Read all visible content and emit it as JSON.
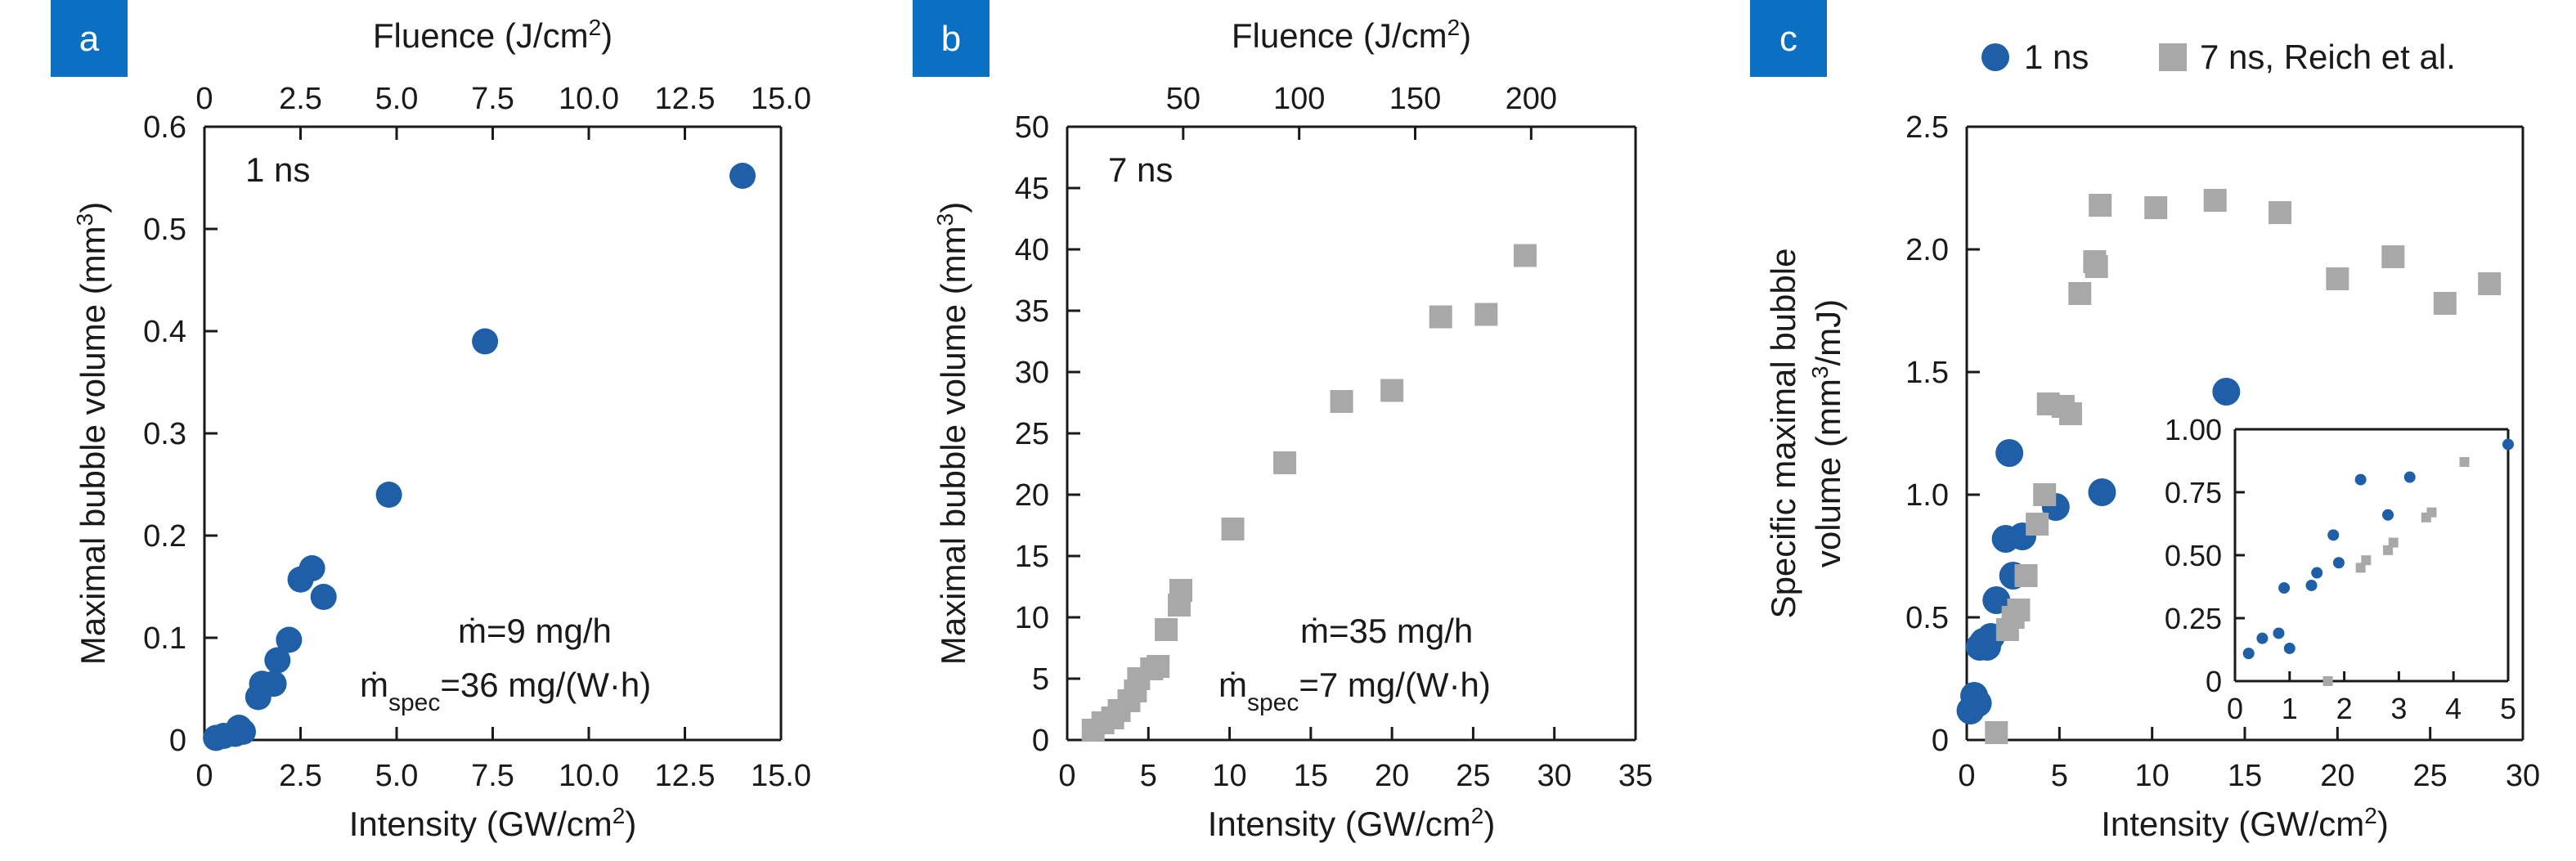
{
  "colors": {
    "blue": "#1f5fa8",
    "gray": "#a8a8a8",
    "badge": "#0b6fc2",
    "axis": "#1a1a1a"
  },
  "chart_data": [
    {
      "id": "a",
      "type": "scatter",
      "panel_label": "a",
      "xlabel": "Intensity (GW/cm²)",
      "ylabel": "Maximal bubble volume (mm³)",
      "x2label": "Fluence (J/cm²)",
      "xlim": [
        0,
        15
      ],
      "ylim": [
        0,
        0.6
      ],
      "x2lim": [
        0,
        15
      ],
      "xticks": [
        "0",
        "2.5",
        "5.0",
        "7.5",
        "10.0",
        "12.5",
        "15.0"
      ],
      "x2ticks": [
        "0",
        "2.5",
        "5.0",
        "7.5",
        "10.0",
        "12.5",
        "15.0"
      ],
      "yticks": [
        "0",
        "0.1",
        "0.2",
        "0.3",
        "0.4",
        "0.5",
        "0.6"
      ],
      "annotations": [
        "1 ns",
        "ṁ=9 mg/h",
        "ṁ",
        "spec",
        "=36 mg/(W·h)"
      ],
      "series": [
        {
          "marker": "circle",
          "color": "#1f5fa8",
          "points": [
            [
              0.3,
              0.002
            ],
            [
              0.5,
              0.004
            ],
            [
              0.8,
              0.006
            ],
            [
              0.9,
              0.012
            ],
            [
              1.0,
              0.008
            ],
            [
              1.4,
              0.042
            ],
            [
              1.5,
              0.055
            ],
            [
              1.8,
              0.055
            ],
            [
              1.9,
              0.078
            ],
            [
              2.2,
              0.098
            ],
            [
              2.5,
              0.157
            ],
            [
              2.8,
              0.168
            ],
            [
              3.1,
              0.14
            ],
            [
              4.8,
              0.24
            ],
            [
              7.3,
              0.39
            ],
            [
              14.0,
              0.552
            ]
          ]
        }
      ]
    },
    {
      "id": "b",
      "type": "scatter",
      "panel_label": "b",
      "xlabel": "Intensity (GW/cm²)",
      "ylabel": "Maximal bubble volume (mm³)",
      "x2label": "Fluence (J/cm²)",
      "xlim": [
        0,
        35
      ],
      "ylim": [
        0,
        50
      ],
      "x2lim": [
        0,
        245
      ],
      "xticks": [
        "0",
        "5",
        "10",
        "15",
        "20",
        "25",
        "30",
        "35"
      ],
      "x2ticks": [
        "50",
        "100",
        "150",
        "200"
      ],
      "yticks": [
        "0",
        "5",
        "10",
        "15",
        "20",
        "25",
        "30",
        "35",
        "40",
        "45",
        "50"
      ],
      "annotations": [
        "7 ns",
        "ṁ=35 mg/h",
        "ṁ",
        "spec",
        "=7 mg/(W·h)"
      ],
      "series": [
        {
          "marker": "square",
          "color": "#a8a8a8",
          "points": [
            [
              1.6,
              0.8
            ],
            [
              2.2,
              1.4
            ],
            [
              2.8,
              1.8
            ],
            [
              3.2,
              2.4
            ],
            [
              3.8,
              3.2
            ],
            [
              4.2,
              4.0
            ],
            [
              4.4,
              5.0
            ],
            [
              5.2,
              5.8
            ],
            [
              5.6,
              6.0
            ],
            [
              6.1,
              9.0
            ],
            [
              6.9,
              11.0
            ],
            [
              7.0,
              12.2
            ],
            [
              10.2,
              17.2
            ],
            [
              13.4,
              22.6
            ],
            [
              16.9,
              27.6
            ],
            [
              20.0,
              28.5
            ],
            [
              23.0,
              34.5
            ],
            [
              25.8,
              34.7
            ],
            [
              28.2,
              39.5
            ]
          ]
        }
      ]
    },
    {
      "id": "c",
      "type": "scatter",
      "panel_label": "c",
      "xlabel": "Intensity (GW/cm²)",
      "ylabel_lines": [
        "Specific maximal bubble",
        "volume (mm³/mJ)"
      ],
      "xlim": [
        0,
        30
      ],
      "ylim": [
        0,
        2.5
      ],
      "xticks": [
        "0",
        "5",
        "10",
        "15",
        "20",
        "25",
        "30"
      ],
      "yticks": [
        "0",
        "0.5",
        "1.0",
        "1.5",
        "2.0",
        "2.5"
      ],
      "legend": {
        "placement": "top",
        "entries": [
          "1 ns",
          "7 ns, Reich et al."
        ]
      },
      "series": [
        {
          "name": "1 ns",
          "marker": "circle",
          "color": "#1f5fa8",
          "points": [
            [
              0.2,
              0.12
            ],
            [
              0.4,
              0.18
            ],
            [
              0.6,
              0.15
            ],
            [
              0.7,
              0.38
            ],
            [
              0.9,
              0.4
            ],
            [
              1.1,
              0.38
            ],
            [
              1.3,
              0.42
            ],
            [
              1.6,
              0.57
            ],
            [
              2.1,
              0.82
            ],
            [
              2.3,
              1.17
            ],
            [
              2.5,
              0.67
            ],
            [
              3.0,
              0.83
            ],
            [
              4.8,
              0.95
            ],
            [
              7.3,
              1.01
            ],
            [
              14.0,
              1.42
            ]
          ]
        },
        {
          "name": "7 ns, Reich et al.",
          "marker": "square",
          "color": "#a8a8a8",
          "points": [
            [
              1.6,
              0.03
            ],
            [
              2.2,
              0.45
            ],
            [
              2.5,
              0.5
            ],
            [
              2.8,
              0.53
            ],
            [
              3.2,
              0.67
            ],
            [
              3.8,
              0.88
            ],
            [
              4.2,
              1.0
            ],
            [
              4.4,
              1.37
            ],
            [
              5.2,
              1.36
            ],
            [
              5.6,
              1.33
            ],
            [
              6.1,
              1.82
            ],
            [
              6.9,
              1.95
            ],
            [
              7.0,
              1.93
            ],
            [
              7.2,
              2.18
            ],
            [
              10.2,
              2.17
            ],
            [
              13.4,
              2.2
            ],
            [
              16.9,
              2.15
            ],
            [
              20.0,
              1.88
            ],
            [
              23.0,
              1.97
            ],
            [
              25.8,
              1.78
            ],
            [
              28.2,
              1.86
            ]
          ]
        }
      ],
      "inset": {
        "xlim": [
          0,
          5
        ],
        "ylim": [
          0,
          1.0
        ],
        "xticks": [
          "0",
          "1",
          "2",
          "3",
          "4",
          "5"
        ],
        "yticks": [
          "0",
          "0.25",
          "0.50",
          "0.75",
          "1.00"
        ],
        "series": [
          {
            "marker": "circle",
            "color": "#1f5fa8",
            "points": [
              [
                0.25,
                0.11
              ],
              [
                0.5,
                0.17
              ],
              [
                0.8,
                0.19
              ],
              [
                0.9,
                0.37
              ],
              [
                1.0,
                0.13
              ],
              [
                1.4,
                0.38
              ],
              [
                1.5,
                0.43
              ],
              [
                1.8,
                0.58
              ],
              [
                1.9,
                0.47
              ],
              [
                2.3,
                0.8
              ],
              [
                2.8,
                0.66
              ],
              [
                3.2,
                0.81
              ],
              [
                5.0,
                0.94
              ]
            ]
          },
          {
            "marker": "square",
            "color": "#a8a8a8",
            "points": [
              [
                1.7,
                0.0
              ],
              [
                2.3,
                0.45
              ],
              [
                2.4,
                0.48
              ],
              [
                2.8,
                0.52
              ],
              [
                2.9,
                0.55
              ],
              [
                3.5,
                0.65
              ],
              [
                3.6,
                0.67
              ],
              [
                4.2,
                0.87
              ]
            ]
          }
        ]
      }
    }
  ]
}
